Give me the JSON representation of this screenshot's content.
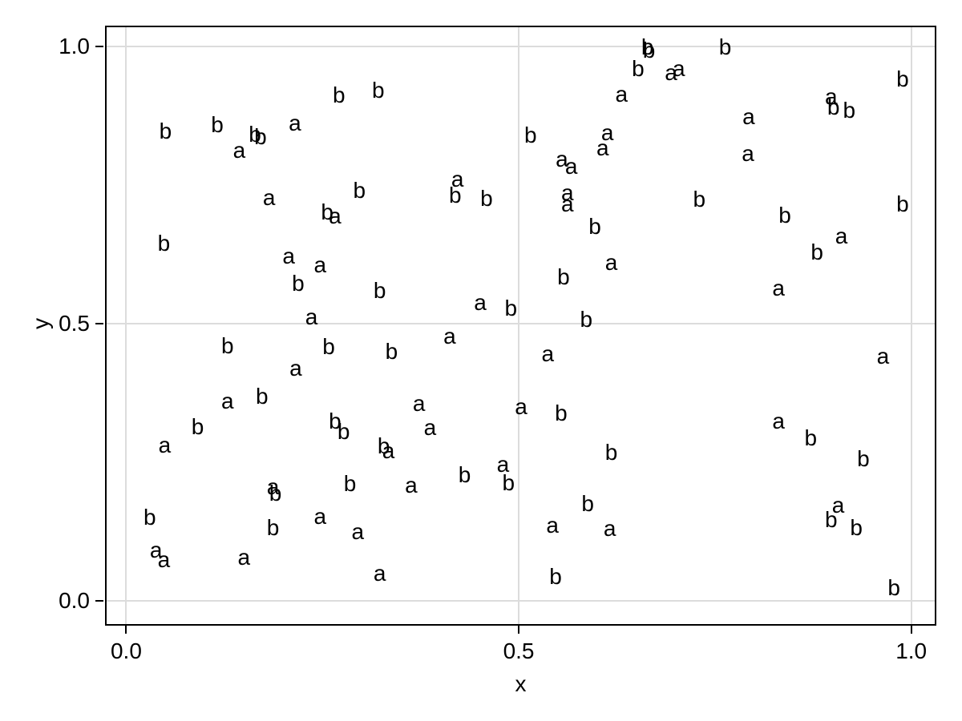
{
  "figure": {
    "background": "#ffffff",
    "text_color": "#000000",
    "grid_color": "#dcdcdc",
    "frame_color": "#000000"
  },
  "chart_data": {
    "type": "scatter",
    "marker": "text-label",
    "title": "",
    "xlabel": "x",
    "ylabel": "y",
    "grid": true,
    "legend": "none",
    "xlim": [
      -0.027,
      1.032
    ],
    "ylim": [
      -0.045,
      1.038
    ],
    "xticks": [
      0.0,
      0.5,
      1.0
    ],
    "xtick_labels": [
      "0.0",
      "0.5",
      "1.0"
    ],
    "yticks": [
      0.0,
      0.5,
      1.0
    ],
    "ytick_labels": [
      "0.0",
      "0.5",
      "1.0"
    ],
    "series": [
      {
        "name": "a",
        "points": [
          [
            0.144,
            0.818
          ],
          [
            0.215,
            0.868
          ],
          [
            0.182,
            0.733
          ],
          [
            0.266,
            0.699
          ],
          [
            0.694,
            0.958
          ],
          [
            0.704,
            0.965
          ],
          [
            0.631,
            0.92
          ],
          [
            0.613,
            0.85
          ],
          [
            0.607,
            0.822
          ],
          [
            0.555,
            0.802
          ],
          [
            0.567,
            0.79
          ],
          [
            0.562,
            0.741
          ],
          [
            0.562,
            0.721
          ],
          [
            0.422,
            0.766
          ],
          [
            0.898,
            0.915
          ],
          [
            0.793,
            0.879
          ],
          [
            0.792,
            0.812
          ],
          [
            0.207,
            0.627
          ],
          [
            0.247,
            0.611
          ],
          [
            0.236,
            0.517
          ],
          [
            0.216,
            0.425
          ],
          [
            0.129,
            0.366
          ],
          [
            0.618,
            0.616
          ],
          [
            0.451,
            0.543
          ],
          [
            0.412,
            0.483
          ],
          [
            0.537,
            0.451
          ],
          [
            0.373,
            0.361
          ],
          [
            0.503,
            0.355
          ],
          [
            0.387,
            0.318
          ],
          [
            0.911,
            0.663
          ],
          [
            0.831,
            0.569
          ],
          [
            0.964,
            0.447
          ],
          [
            0.831,
            0.329
          ],
          [
            0.049,
            0.286
          ],
          [
            0.334,
            0.276
          ],
          [
            0.187,
            0.211
          ],
          [
            0.247,
            0.158
          ],
          [
            0.295,
            0.13
          ],
          [
            0.038,
            0.097
          ],
          [
            0.048,
            0.079
          ],
          [
            0.15,
            0.084
          ],
          [
            0.323,
            0.055
          ],
          [
            0.363,
            0.214
          ],
          [
            0.48,
            0.251
          ],
          [
            0.543,
            0.142
          ],
          [
            0.616,
            0.136
          ],
          [
            0.907,
            0.178
          ]
        ]
      },
      {
        "name": "b",
        "points": [
          [
            0.271,
            0.913
          ],
          [
            0.321,
            0.922
          ],
          [
            0.05,
            0.848
          ],
          [
            0.116,
            0.86
          ],
          [
            0.164,
            0.843
          ],
          [
            0.171,
            0.838
          ],
          [
            0.297,
            0.741
          ],
          [
            0.256,
            0.702
          ],
          [
            0.664,
            1.0
          ],
          [
            0.666,
            0.994
          ],
          [
            0.652,
            0.961
          ],
          [
            0.515,
            0.842
          ],
          [
            0.597,
            0.676
          ],
          [
            0.419,
            0.733
          ],
          [
            0.459,
            0.727
          ],
          [
            0.763,
            1.0
          ],
          [
            0.989,
            0.942
          ],
          [
            0.901,
            0.892
          ],
          [
            0.921,
            0.886
          ],
          [
            0.73,
            0.726
          ],
          [
            0.839,
            0.697
          ],
          [
            0.989,
            0.717
          ],
          [
            0.048,
            0.646
          ],
          [
            0.219,
            0.574
          ],
          [
            0.323,
            0.561
          ],
          [
            0.129,
            0.461
          ],
          [
            0.258,
            0.46
          ],
          [
            0.173,
            0.37
          ],
          [
            0.091,
            0.315
          ],
          [
            0.266,
            0.325
          ],
          [
            0.277,
            0.306
          ],
          [
            0.557,
            0.585
          ],
          [
            0.49,
            0.529
          ],
          [
            0.586,
            0.509
          ],
          [
            0.338,
            0.451
          ],
          [
            0.554,
            0.34
          ],
          [
            0.88,
            0.63
          ],
          [
            0.328,
            0.28
          ],
          [
            0.19,
            0.195
          ],
          [
            0.285,
            0.212
          ],
          [
            0.03,
            0.152
          ],
          [
            0.187,
            0.133
          ],
          [
            0.431,
            0.228
          ],
          [
            0.487,
            0.214
          ],
          [
            0.618,
            0.269
          ],
          [
            0.588,
            0.176
          ],
          [
            0.547,
            0.045
          ],
          [
            0.872,
            0.295
          ],
          [
            0.939,
            0.257
          ],
          [
            0.898,
            0.147
          ],
          [
            0.93,
            0.133
          ],
          [
            0.978,
            0.025
          ]
        ]
      }
    ]
  }
}
